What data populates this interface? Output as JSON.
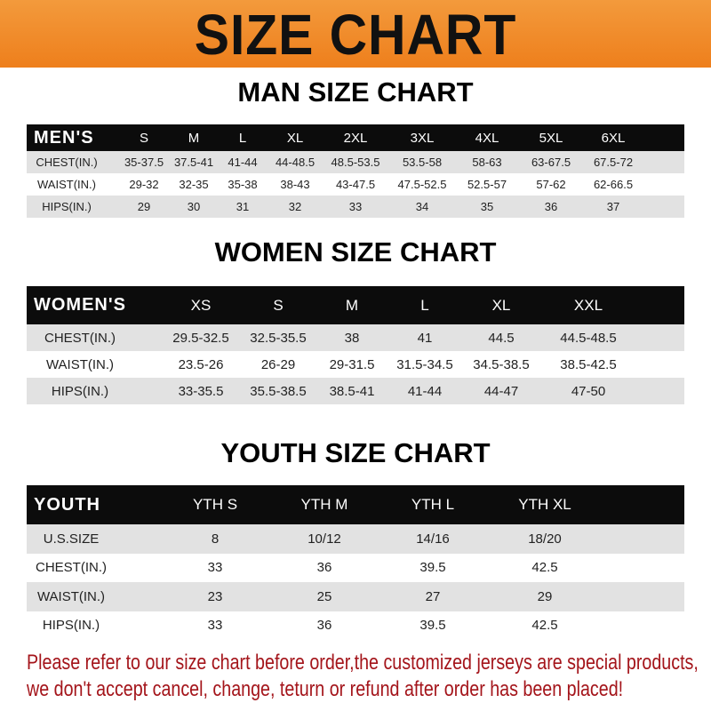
{
  "banner": {
    "title": "SIZE CHART",
    "color": "#ef8a2a"
  },
  "men": {
    "title": "MAN SIZE CHART",
    "header": [
      "MEN'S",
      "S",
      "M",
      "L",
      "XL",
      "2XL",
      "3XL",
      "4XL",
      "5XL",
      "6XL"
    ],
    "rows": [
      [
        "CHEST(IN.)",
        "35-37.5",
        "37.5-41",
        "41-44",
        "44-48.5",
        "48.5-53.5",
        "53.5-58",
        "58-63",
        "63-67.5",
        "67.5-72"
      ],
      [
        "WAIST(IN.)",
        "29-32",
        "32-35",
        "35-38",
        "38-43",
        "43-47.5",
        "47.5-52.5",
        "52.5-57",
        "57-62",
        "62-66.5"
      ],
      [
        "HIPS(IN.)",
        "29",
        "30",
        "31",
        "32",
        "33",
        "34",
        "35",
        "36",
        "37"
      ]
    ]
  },
  "women": {
    "title": "WOMEN SIZE CHART",
    "header": [
      "WOMEN'S",
      "XS",
      "S",
      "M",
      "L",
      "XL",
      "XXL"
    ],
    "rows": [
      [
        "CHEST(IN.)",
        "29.5-32.5",
        "32.5-35.5",
        "38",
        "41",
        "44.5",
        "44.5-48.5"
      ],
      [
        "WAIST(IN.)",
        "23.5-26",
        "26-29",
        "29-31.5",
        "31.5-34.5",
        "34.5-38.5",
        "38.5-42.5"
      ],
      [
        "HIPS(IN.)",
        "33-35.5",
        "35.5-38.5",
        "38.5-41",
        "41-44",
        "44-47",
        "47-50"
      ]
    ]
  },
  "youth": {
    "title": "YOUTH SIZE CHART",
    "header": [
      "YOUTH",
      "YTH S",
      "YTH M",
      "YTH L",
      "YTH XL"
    ],
    "rows": [
      [
        "U.S.SIZE",
        "8",
        "10/12",
        "14/16",
        "18/20"
      ],
      [
        "CHEST(IN.)",
        "33",
        "36",
        "39.5",
        "42.5"
      ],
      [
        "WAIST(IN.)",
        "23",
        "25",
        "27",
        "29"
      ],
      [
        "HIPS(IN.)",
        "33",
        "36",
        "39.5",
        "42.5"
      ]
    ]
  },
  "footer": {
    "line1": "Please refer to our size chart before order,the customized jerseys are special products,",
    "line2": "we don't accept cancel, change, teturn or refund after order has been placed!",
    "color": "#a4151b"
  }
}
